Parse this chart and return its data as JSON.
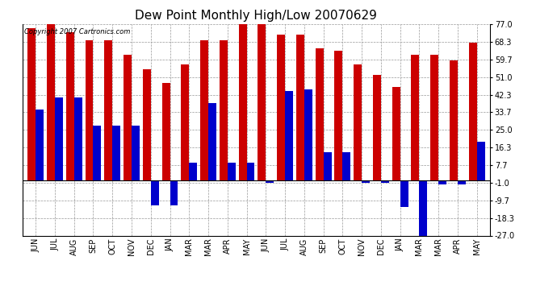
{
  "title": "Dew Point Monthly High/Low 20070629",
  "copyright": "Copyright 2007 Cartronics.com",
  "categories": [
    "JUN",
    "JUL",
    "AUG",
    "SEP",
    "OCT",
    "NOV",
    "DEC",
    "JAN",
    "MAR",
    "MAR",
    "APR",
    "MAY",
    "JUN",
    "JUL",
    "AUG",
    "SEP",
    "OCT",
    "NOV",
    "DEC",
    "JAN",
    "MAR",
    "MAR",
    "APR",
    "MAY"
  ],
  "highs": [
    75,
    77,
    73,
    69,
    69,
    62,
    55,
    48,
    57,
    69,
    69,
    77,
    77,
    72,
    72,
    65,
    64,
    57,
    52,
    46,
    62,
    62,
    59,
    68
  ],
  "lows": [
    35,
    41,
    41,
    27,
    27,
    27,
    -12,
    -12,
    9,
    38,
    9,
    9,
    -1,
    44,
    45,
    14,
    14,
    -1,
    -1,
    -13,
    -27,
    -2,
    -2,
    19
  ],
  "bar_width": 0.42,
  "ylim": [
    -27,
    77
  ],
  "yticks": [
    -27.0,
    -18.3,
    -9.7,
    -1.0,
    7.7,
    16.3,
    25.0,
    33.7,
    42.3,
    51.0,
    59.7,
    68.3,
    77.0
  ],
  "ytick_labels": [
    "-27.0",
    "-18.3",
    "-9.7",
    "-1.0",
    "7.7",
    "16.3",
    "25.0",
    "33.7",
    "42.3",
    "51.0",
    "59.7",
    "68.3",
    "77.0"
  ],
  "high_color": "#cc0000",
  "low_color": "#0000cc",
  "bg_color": "#ffffff",
  "grid_color": "#999999",
  "title_fontsize": 11,
  "label_fontsize": 7,
  "figwidth": 6.9,
  "figheight": 3.75,
  "dpi": 100
}
